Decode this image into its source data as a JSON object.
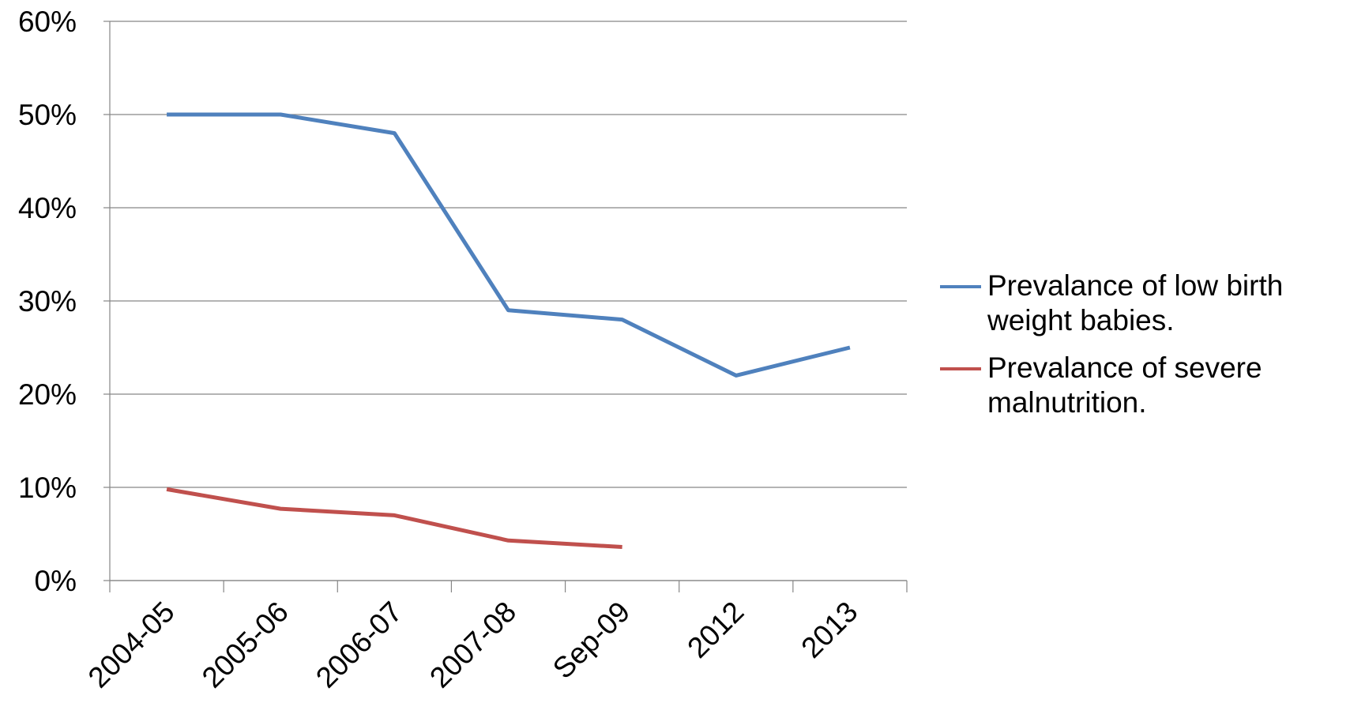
{
  "chart_data": {
    "type": "line",
    "categories": [
      "2004-05",
      "2005-06",
      "2006-07",
      "2007-08",
      "Sep-09",
      "2012",
      "2013"
    ],
    "series": [
      {
        "name": "Prevalance of low birth weight babies.",
        "color": "#4f81bd",
        "values": [
          50,
          50,
          48,
          29,
          28,
          22,
          25
        ]
      },
      {
        "name": "Prevalance of severe malnutrition.",
        "color": "#c0504d",
        "values": [
          9.8,
          7.7,
          7,
          4.3,
          3.6,
          null,
          null
        ]
      }
    ],
    "ylim": [
      0,
      60
    ],
    "yticks": [
      {
        "value": 0,
        "label": "0%"
      },
      {
        "value": 10,
        "label": "10%"
      },
      {
        "value": 20,
        "label": "20%"
      },
      {
        "value": 30,
        "label": "30%"
      },
      {
        "value": 40,
        "label": "40%"
      },
      {
        "value": 50,
        "label": "50%"
      },
      {
        "value": 60,
        "label": "60%"
      }
    ],
    "grid": true,
    "legend": "right"
  }
}
